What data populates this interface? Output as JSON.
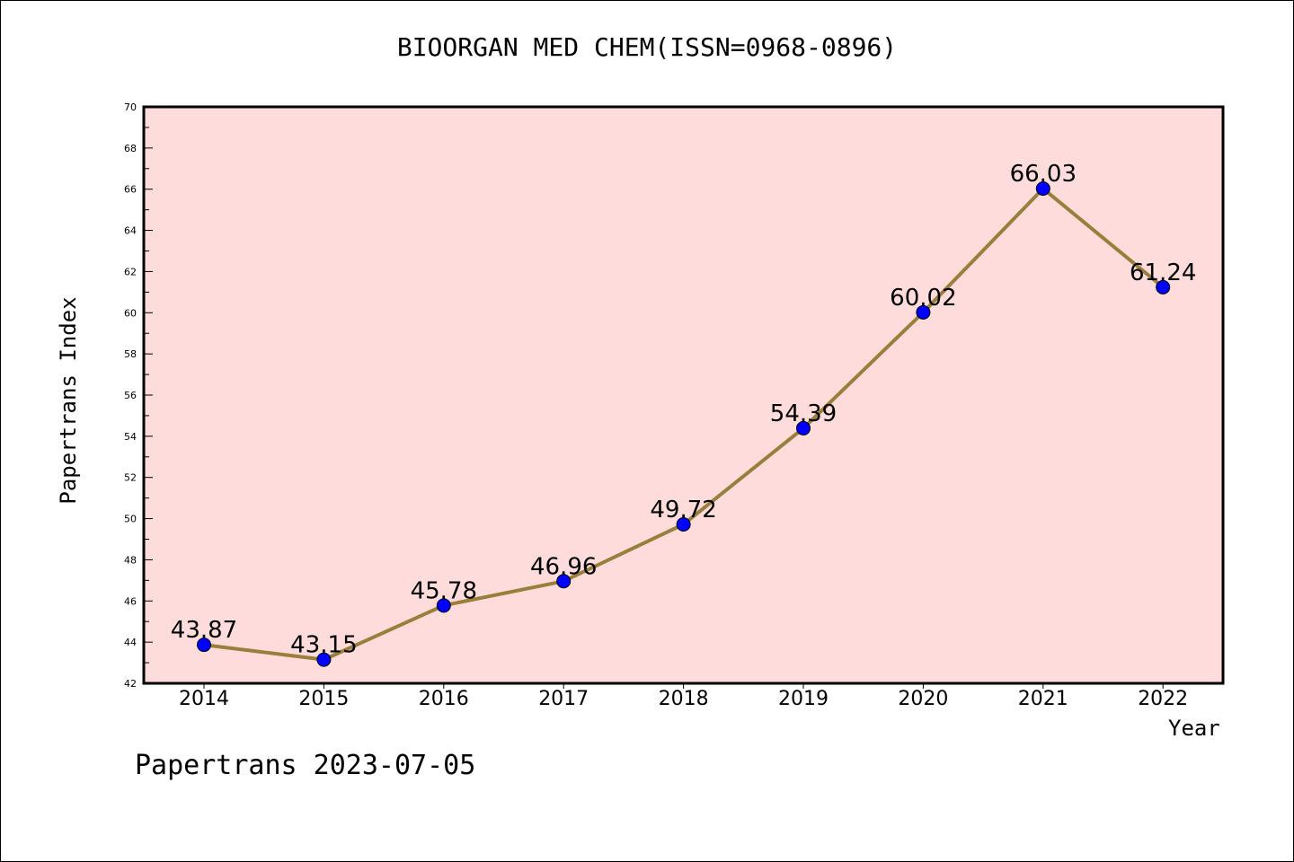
{
  "chart_data": {
    "type": "line",
    "title": "BIOORGAN MED CHEM(ISSN=0968-0896)",
    "xlabel": "Year",
    "ylabel": "Papertrans Index",
    "categories": [
      "2014",
      "2015",
      "2016",
      "2017",
      "2018",
      "2019",
      "2020",
      "2021",
      "2022"
    ],
    "series": [
      {
        "values": [
          43.87,
          43.15,
          45.78,
          46.96,
          49.72,
          54.39,
          60.02,
          66.03,
          61.24
        ]
      }
    ],
    "ylim": [
      42,
      70
    ],
    "ytick_labels": [
      "42",
      "44",
      "46",
      "48",
      "50",
      "52",
      "54",
      "56",
      "58",
      "60",
      "62",
      "64",
      "66",
      "68",
      "70"
    ],
    "data_labels": [
      "43.87",
      "43.15",
      "45.78",
      "46.96",
      "49.72",
      "54.39",
      "60.02",
      "66.03",
      "61.24"
    ],
    "grid": false,
    "colors": {
      "plot_background": "#fddcdb",
      "line": "#9a7f3c",
      "marker": "#0000ff"
    }
  },
  "footer": "Papertrans 2023-07-05"
}
